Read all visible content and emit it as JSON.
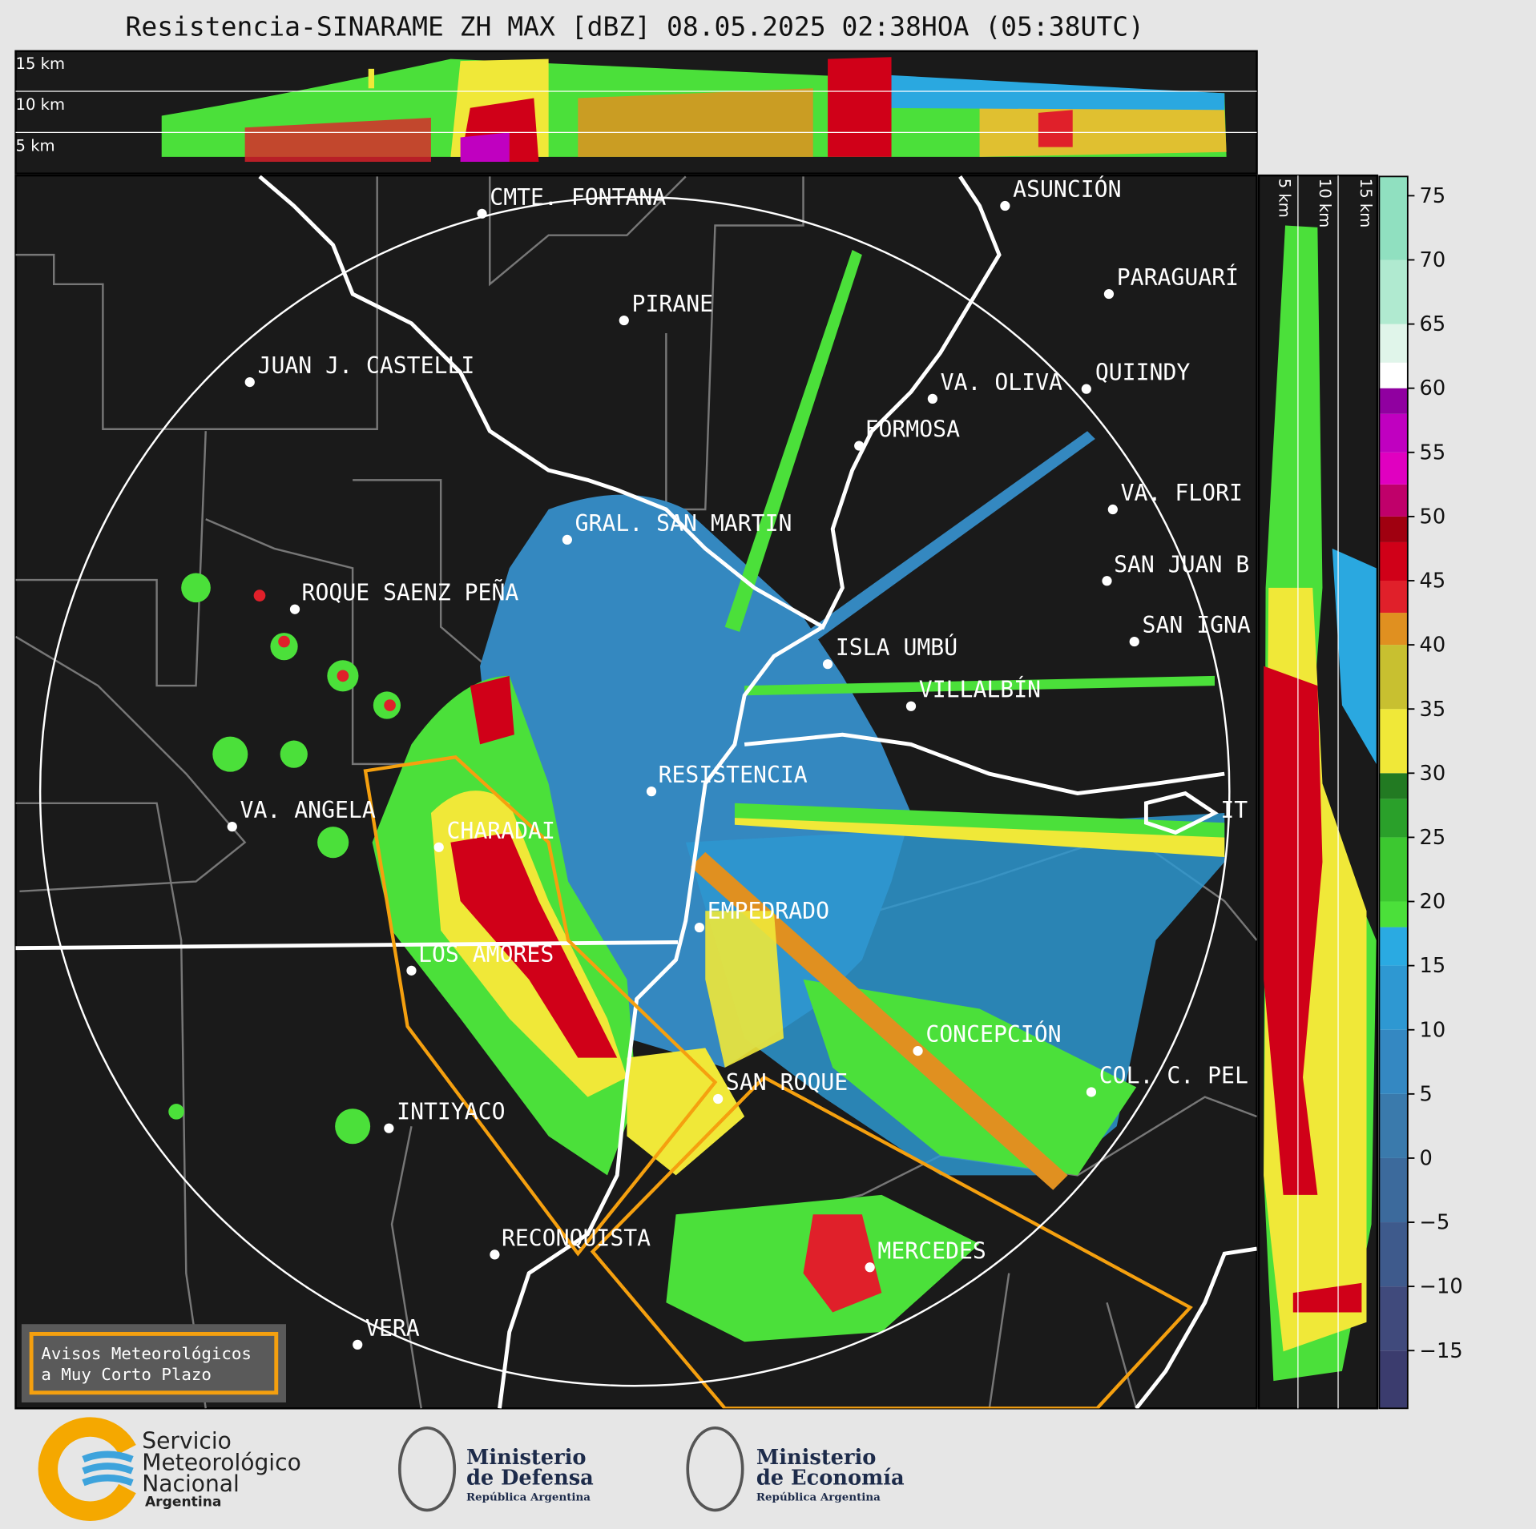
{
  "title": "Resistencia-SINARAME ZH MAX [dBZ] 08.05.2025 02:38HOA (05:38UTC)",
  "top_panel": {
    "height_labels": [
      "15 km",
      "10 km",
      "5 km"
    ]
  },
  "side_panel": {
    "height_labels": [
      "5 km",
      "10 km",
      "15 km"
    ]
  },
  "cities": [
    {
      "name": "CMTE. FONTANA"
    },
    {
      "name": "PIRANE"
    },
    {
      "name": "JUAN J. CASTELLI"
    },
    {
      "name": "ASUNCIÓN"
    },
    {
      "name": "PARAGUARÍ"
    },
    {
      "name": "VA. OLIVA"
    },
    {
      "name": "QUIINDY"
    },
    {
      "name": "FORMOSA"
    },
    {
      "name": "VA. FLORI"
    },
    {
      "name": "SAN JUAN B"
    },
    {
      "name": "SAN IGNA"
    },
    {
      "name": "GRAL. SAN MARTIN"
    },
    {
      "name": "ROQUE SAENZ PEÑA"
    },
    {
      "name": "ISLA UMBÚ"
    },
    {
      "name": "VILLALBÍN"
    },
    {
      "name": "RESISTENCIA"
    },
    {
      "name": "VA. ANGELA"
    },
    {
      "name": "CHARADAI"
    },
    {
      "name": "IT"
    },
    {
      "name": "EMPEDRADO"
    },
    {
      "name": "LOS AMORES"
    },
    {
      "name": "CONCEPCIÓN"
    },
    {
      "name": "SAN ROQUE"
    },
    {
      "name": "COL. C. PEL"
    },
    {
      "name": "INTIYACO"
    },
    {
      "name": "RECONQUISTA"
    },
    {
      "name": "MERCEDES"
    },
    {
      "name": "VERA"
    }
  ],
  "warning_box": {
    "lines": [
      "Avisos Meteorológicos",
      "a Muy Corto Plazo"
    ]
  },
  "colorbar": {
    "lim": [
      -19.5,
      76.5
    ],
    "ticks": [
      {
        "value": -15,
        "label": "−15"
      },
      {
        "value": -10,
        "label": "−10"
      },
      {
        "value": -5,
        "label": "−5"
      },
      0,
      5,
      10,
      15,
      20,
      25,
      30,
      35,
      40,
      45,
      50,
      55,
      60,
      65,
      70,
      75
    ],
    "band_starts": [
      -19.5,
      -15,
      -10,
      -5,
      0,
      5,
      10,
      15,
      18,
      20,
      25,
      28,
      30,
      35,
      40,
      42.5,
      45,
      48,
      50,
      52.5,
      55,
      58,
      60,
      62,
      65,
      70
    ],
    "band_colors": [
      "#3b3c6e",
      "#404a7c",
      "#3e5a8c",
      "#3c6a9c",
      "#3a7aac",
      "#3488c2",
      "#2e98d2",
      "#2aaae2",
      "#4be03a",
      "#3cc830",
      "#2aa02a",
      "#227a22",
      "#f0e838",
      "#c8c030",
      "#e09020",
      "#e0202a",
      "#d00018",
      "#a00010",
      "#c0006a",
      "#e000c0",
      "#c000c0",
      "#9000a0",
      "#ffffff",
      "#e0f5ea",
      "#b0ead0",
      "#90e0c0"
    ]
  },
  "logos": [
    {
      "lines": [
        "Servicio",
        "Meteorológico",
        "Nacional"
      ],
      "sub": "Argentina"
    },
    {
      "lines": [
        "Ministerio",
        "de Defensa"
      ],
      "sub": "República Argentina"
    },
    {
      "lines": [
        "Ministerio",
        "de Economía"
      ],
      "sub": "República Argentina"
    }
  ]
}
